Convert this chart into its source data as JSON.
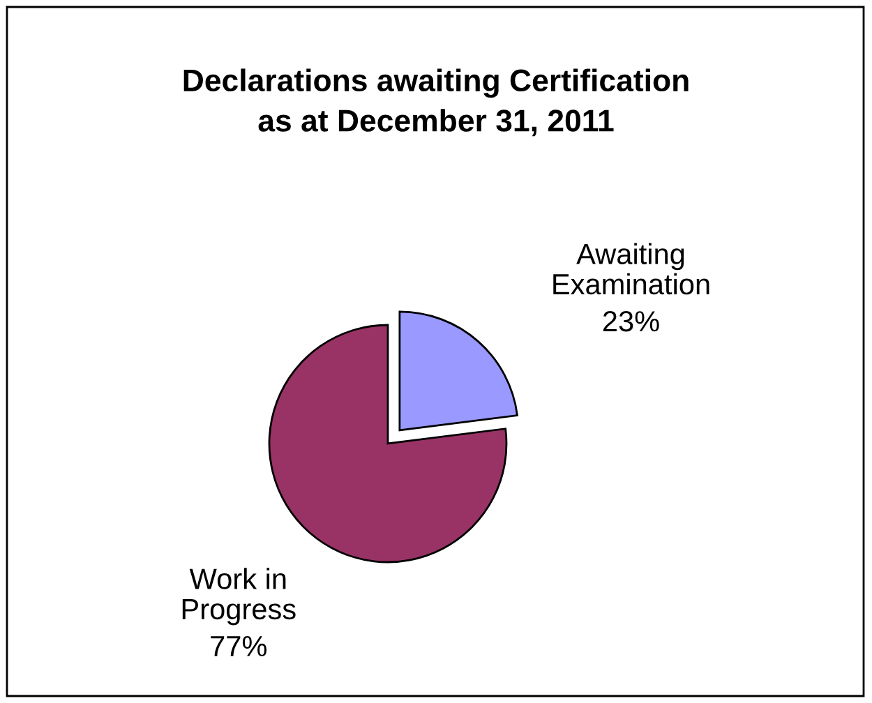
{
  "chart_data": {
    "type": "pie",
    "title": "Declarations awaiting Certification\nas at December 31, 2011",
    "categories": [
      "Awaiting Examination",
      "Work in Progress"
    ],
    "values": [
      23,
      77
    ],
    "value_labels": [
      "23%",
      "77%"
    ],
    "colors": [
      "#9999ff",
      "#993366"
    ]
  }
}
